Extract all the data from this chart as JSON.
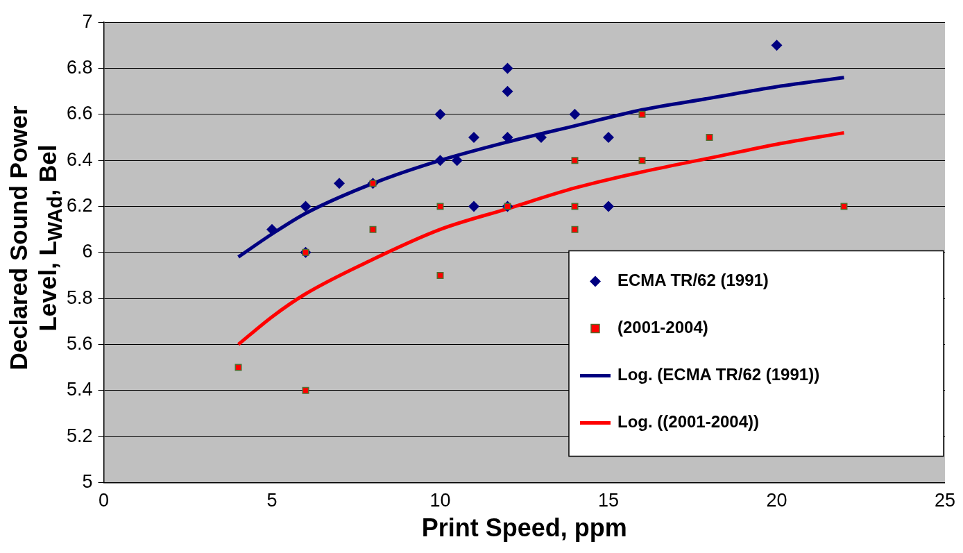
{
  "chart_data": {
    "type": "scatter",
    "xlabel": "Print Speed, ppm",
    "ylabel": "Declared Sound Power Level, L$_{WAd}$, Bel",
    "xlim": [
      0,
      25
    ],
    "xticks": [
      0,
      5,
      10,
      15,
      20,
      25
    ],
    "ylim": [
      5,
      7
    ],
    "yticks": [
      5,
      5.2,
      5.4,
      5.6,
      5.8,
      6,
      6.2,
      6.4,
      6.6,
      6.8,
      7
    ],
    "grid": "y",
    "legend": "bottom right",
    "series": [
      {
        "name": "ECMA TR/62 (1991)",
        "color": "#000080",
        "marker": "diamond",
        "x": [
          5,
          6,
          6,
          7,
          8,
          10,
          10,
          10.5,
          11,
          11,
          12,
          12,
          12,
          12,
          13,
          14,
          15,
          15,
          20
        ],
        "values": [
          6.1,
          6.2,
          6.0,
          6.3,
          6.3,
          6.6,
          6.4,
          6.4,
          6.5,
          6.2,
          6.8,
          6.7,
          6.5,
          6.2,
          6.5,
          6.6,
          6.5,
          6.2,
          6.9
        ]
      },
      {
        "name": "(2001-2004)",
        "color": "#ff0000",
        "marker": "square",
        "x": [
          4,
          6,
          6,
          8,
          8,
          10,
          10,
          12,
          14,
          14,
          14,
          16,
          16,
          18,
          22
        ],
        "values": [
          5.5,
          6.0,
          5.4,
          6.3,
          6.1,
          6.2,
          5.9,
          6.2,
          6.4,
          6.2,
          6.1,
          6.6,
          6.4,
          6.5,
          6.2
        ]
      },
      {
        "name": "Log. (ECMA TR/62 (1991))",
        "type": "line",
        "color": "#000080",
        "marker": "none",
        "x": [
          4,
          5,
          6,
          8,
          10,
          12,
          14,
          16,
          18,
          20,
          22
        ],
        "values": [
          5.98,
          6.08,
          6.17,
          6.3,
          6.4,
          6.48,
          6.55,
          6.62,
          6.67,
          6.72,
          6.76
        ]
      },
      {
        "name": "Log. ((2001-2004))",
        "type": "line",
        "color": "#ff0000",
        "marker": "none",
        "x": [
          4,
          5,
          6,
          8,
          10,
          12,
          14,
          16,
          18,
          20,
          22
        ],
        "values": [
          5.6,
          5.72,
          5.82,
          5.97,
          6.1,
          6.19,
          6.28,
          6.35,
          6.41,
          6.47,
          6.52
        ]
      }
    ]
  }
}
